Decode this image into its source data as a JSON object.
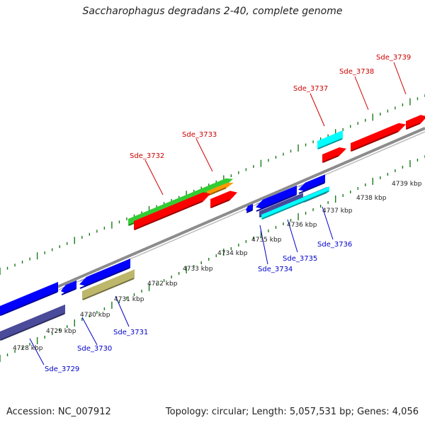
{
  "title": "Saccharophagus degradans 2-40, complete genome",
  "footer": {
    "accession": "Accession: NC_007912",
    "stats": "Topology: circular; Length: 5,057,531 bp; Genes: 4,056"
  },
  "colors": {
    "backbone": "#8c8c8c",
    "tick": "#1a7a1a",
    "label_forward": "#cc0000",
    "label_reverse": "#0000cc",
    "gene_red": "#ff0000",
    "gene_green": "#33cc33",
    "gene_orange": "#ff9900",
    "gene_blue": "#0000ff",
    "gene_indigo": "#4b4b9b",
    "gene_khaki": "#bdb76b",
    "gene_cyan": "#00ffff"
  },
  "kbp_labels": [
    "4728 kbp",
    "4729 kbp",
    "4730 kbp",
    "4731 kbp",
    "4732 kbp",
    "4733 kbp",
    "4734 kbp",
    "4735 kbp",
    "4736 kbp",
    "4737 kbp",
    "4738 kbp",
    "4739 kbp"
  ],
  "gene_labels": {
    "forward": [
      "Sde_3732",
      "Sde_3733",
      "Sde_3737",
      "Sde_3738",
      "Sde_3739"
    ],
    "reverse": [
      "Sde_3729",
      "Sde_3730",
      "Sde_3731",
      "Sde_3734",
      "Sde_3735",
      "Sde_3736"
    ]
  },
  "features": [
    {
      "id": "f1",
      "color": "gene_green"
    },
    {
      "id": "f2",
      "color": "gene_orange"
    },
    {
      "id": "f3",
      "color": "gene_red"
    },
    {
      "id": "f4",
      "color": "gene_red"
    },
    {
      "id": "f5",
      "color": "gene_cyan"
    },
    {
      "id": "f6",
      "color": "gene_red"
    },
    {
      "id": "f7",
      "color": "gene_red"
    },
    {
      "id": "f8",
      "color": "gene_red"
    },
    {
      "id": "r1",
      "color": "gene_blue"
    },
    {
      "id": "r2",
      "color": "gene_indigo"
    },
    {
      "id": "r3",
      "color": "gene_blue"
    },
    {
      "id": "r4",
      "color": "gene_blue"
    },
    {
      "id": "r5",
      "color": "gene_khaki"
    },
    {
      "id": "r6",
      "color": "gene_blue"
    },
    {
      "id": "r7",
      "color": "gene_blue"
    },
    {
      "id": "r8",
      "color": "gene_indigo"
    },
    {
      "id": "r9",
      "color": "gene_blue"
    },
    {
      "id": "r10",
      "color": "gene_indigo"
    },
    {
      "id": "r11",
      "color": "gene_cyan"
    }
  ]
}
